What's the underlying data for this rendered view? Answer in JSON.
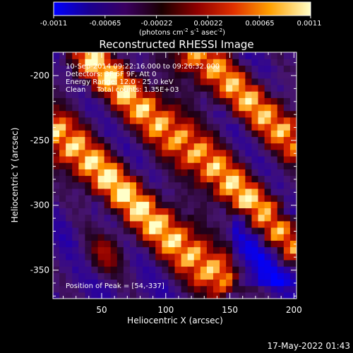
{
  "chart_data": {
    "type": "heatmap",
    "title": "Reconstructed RHESSI Image",
    "xlabel": "Heliocentric X (arcsec)",
    "ylabel": "Heliocentric Y (arcsec)",
    "xlim": [
      12,
      202
    ],
    "ylim": [
      -372,
      -182
    ],
    "x_ticks": [
      50,
      100,
      150,
      200
    ],
    "y_ticks": [
      -200,
      -250,
      -300,
      -350
    ],
    "colorbar": {
      "range": [
        -0.0011,
        0.0011
      ],
      "tick_labels": [
        "-0.0011",
        "-0.00065",
        "-0.00022",
        "0.00022",
        "0.00065",
        "0.0011"
      ],
      "label_main": "(photons cm",
      "label_sup1": "-2",
      "label_mid1": " s",
      "label_sup2": "-1",
      "label_mid2": " asec",
      "label_sup3": "-2",
      "label_end": ")"
    },
    "annotations": [
      "10-Sep-2014 09:22:16.000 to 09:26:32.000",
      "Detectors: 3F 6F 9F, Att 0",
      "Energy Range: 12.0 - 25.0 keV",
      "Clean     Total counts: 1.35E+03"
    ],
    "peak_label": "Position of Peak = [54,-337]",
    "peak": [
      54,
      -337
    ],
    "bands_description": [
      {
        "x0": 12,
        "y0": -242,
        "x1": 140,
        "y1": -355,
        "strength": 1.0
      },
      {
        "x0": 40,
        "y0": -186,
        "x1": 202,
        "y1": -330,
        "strength": 0.95
      },
      {
        "x0": 120,
        "y0": -182,
        "x1": 202,
        "y1": -250,
        "strength": 0.85
      }
    ]
  },
  "footer": {
    "timestamp": "17-May-2022 01:43"
  }
}
